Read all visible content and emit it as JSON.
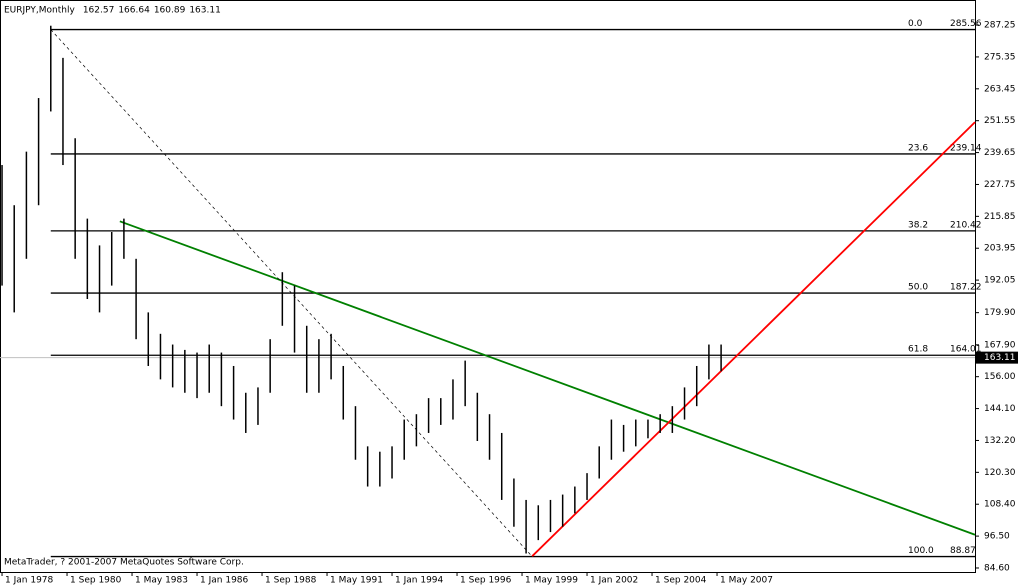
{
  "chart_data": {
    "type": "hilo",
    "title": "EURJPY,Monthly",
    "last_bar": [
      162.57,
      166.64,
      160.89,
      163.11
    ],
    "footer": "MetaTrader, ? 2001-2007 MetaQuotes Software Corp.",
    "x": [
      "1978-01",
      "1978-07",
      "1979-01",
      "1979-07",
      "1980-01",
      "1980-07",
      "1981-01",
      "1981-07",
      "1982-01",
      "1982-07",
      "1983-01",
      "1983-07",
      "1984-01",
      "1984-07",
      "1985-01",
      "1985-07",
      "1986-01",
      "1986-07",
      "1987-01",
      "1987-07",
      "1988-01",
      "1988-07",
      "1989-01",
      "1989-07",
      "1990-01",
      "1990-07",
      "1991-01",
      "1991-07",
      "1992-01",
      "1992-07",
      "1993-01",
      "1993-07",
      "1994-01",
      "1994-07",
      "1995-01",
      "1995-07",
      "1996-01",
      "1996-07",
      "1997-01",
      "1997-07",
      "1998-01",
      "1998-07",
      "1999-01",
      "1999-07",
      "2000-01",
      "2000-07",
      "2001-01",
      "2001-07",
      "2002-01",
      "2002-07",
      "2003-01",
      "2003-07",
      "2004-01",
      "2004-07",
      "2005-01",
      "2005-07",
      "2006-01",
      "2006-07",
      "2007-01",
      "2007-07"
    ],
    "low": [
      190,
      180,
      200,
      220,
      255,
      235,
      200,
      185,
      180,
      190,
      200,
      170,
      160,
      155,
      152,
      150,
      148,
      150,
      145,
      140,
      135,
      138,
      150,
      175,
      165,
      150,
      150,
      155,
      140,
      125,
      115,
      115,
      118,
      125,
      130,
      135,
      138,
      140,
      145,
      132,
      125,
      110,
      100,
      90,
      95,
      98,
      100,
      105,
      110,
      118,
      125,
      128,
      130,
      133,
      135,
      135,
      140,
      145,
      155,
      158
    ],
    "high": [
      235,
      220,
      240,
      260,
      287,
      275,
      245,
      215,
      205,
      210,
      215,
      200,
      180,
      172,
      168,
      166,
      165,
      168,
      165,
      160,
      150,
      152,
      170,
      195,
      190,
      175,
      170,
      172,
      160,
      145,
      130,
      128,
      130,
      140,
      142,
      148,
      148,
      155,
      162,
      150,
      142,
      135,
      118,
      110,
      108,
      110,
      112,
      115,
      120,
      130,
      140,
      138,
      140,
      140,
      142,
      145,
      152,
      160,
      168,
      168
    ],
    "color": "#000000",
    "xlim": [
      "1977-12",
      "2017-12"
    ],
    "xticks": [
      {
        "value": "1978-01",
        "label": "1 Jan 1978"
      },
      {
        "value": "1980-09",
        "label": "1 Sep 1980"
      },
      {
        "value": "1983-05",
        "label": "1 May 1983"
      },
      {
        "value": "1986-01",
        "label": "1 Jan 1986"
      },
      {
        "value": "1988-09",
        "label": "1 Sep 1988"
      },
      {
        "value": "1991-05",
        "label": "1 May 1991"
      },
      {
        "value": "1994-01",
        "label": "1 Jan 1994"
      },
      {
        "value": "1996-09",
        "label": "1 Sep 1996"
      },
      {
        "value": "1999-05",
        "label": "1 May 1999"
      },
      {
        "value": "2002-01",
        "label": "1 Jan 2002"
      },
      {
        "value": "2004-09",
        "label": "1 Sep 2004"
      },
      {
        "value": "2007-05",
        "label": "1 May 2007"
      }
    ],
    "ylim": [
      83.1,
      296.6
    ],
    "yticks": [
      287.25,
      275.35,
      263.45,
      251.55,
      {
        "value": 239.65,
        "label": "239.65"
      },
      227.75,
      215.85,
      203.95,
      192.05,
      {
        "value": 179.9,
        "label": "179.90"
      },
      {
        "value": 167.9,
        "label": "167.90"
      },
      {
        "value": 156,
        "label": "156.00"
      },
      {
        "value": 144.1,
        "label": "144.10"
      },
      {
        "value": 132.2,
        "label": "132.20"
      },
      {
        "value": 120.3,
        "label": "120.30"
      },
      {
        "value": 108.4,
        "label": "108.40"
      },
      {
        "value": 96.5,
        "label": "96.50"
      },
      {
        "value": 84.6,
        "label": "84.60"
      }
    ],
    "last_price": 163.11,
    "fibo": {
      "start": "1980-01",
      "levels": [
        {
          "ratio": "0.0",
          "price": 285.56
        },
        {
          "ratio": "23.6",
          "price": 239.14
        },
        {
          "ratio": "38.2",
          "price": 210.42
        },
        {
          "ratio": "50.0",
          "price": 187.22
        },
        {
          "ratio": "61.8",
          "price": 164.01
        },
        {
          "ratio": "100.0",
          "price": 88.87
        }
      ]
    },
    "lines": [
      {
        "color": "#008000",
        "dash": false,
        "x": [
          "1982-11",
          "2017-12"
        ],
        "y": [
          214,
          97
        ]
      },
      {
        "color": "#ff0000",
        "dash": false,
        "x": [
          "1999-10",
          "2017-12"
        ],
        "y": [
          89,
          251
        ]
      },
      {
        "color": "#000000",
        "dash": true,
        "x": [
          "1980-01",
          "1999-10"
        ],
        "y": [
          285.56,
          88.87
        ]
      }
    ]
  }
}
